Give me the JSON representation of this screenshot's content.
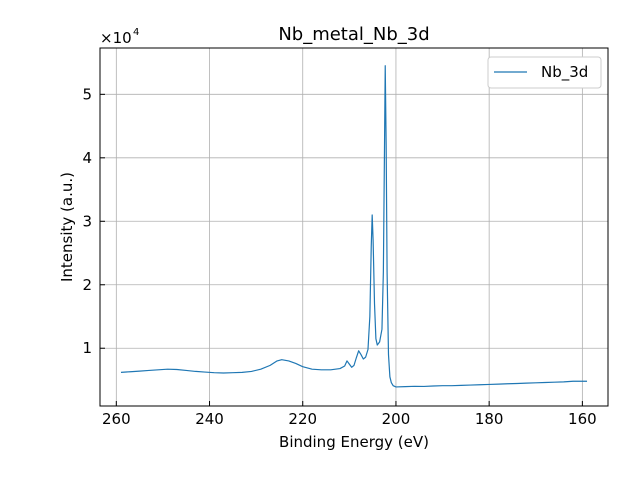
{
  "chart_data": {
    "type": "line",
    "title": "Nb_metal_Nb_3d",
    "xlabel": "Binding Energy (eV)",
    "ylabel": "Intensity (a.u.)",
    "x_inverted": true,
    "xlim": [
      263.5,
      154.5
    ],
    "ylim": [
      900,
      57300
    ],
    "y_multiplier_label": "×10",
    "y_multiplier_exp": "4",
    "x_ticks": [
      260,
      240,
      220,
      200,
      180,
      160
    ],
    "x_tick_labels": [
      "260",
      "240",
      "220",
      "200",
      "180",
      "160"
    ],
    "y_ticks": [
      10000,
      20000,
      30000,
      40000,
      50000
    ],
    "y_tick_labels": [
      "1",
      "2",
      "3",
      "4",
      "5"
    ],
    "grid": true,
    "legend": {
      "position": "top-right",
      "entries": [
        "Nb_3d"
      ]
    },
    "series": [
      {
        "name": "Nb_3d",
        "color": "#1f77b4",
        "points": [
          [
            259,
            6200
          ],
          [
            257,
            6300
          ],
          [
            255,
            6400
          ],
          [
            253,
            6500
          ],
          [
            251,
            6600
          ],
          [
            249,
            6700
          ],
          [
            247,
            6650
          ],
          [
            245,
            6500
          ],
          [
            243,
            6350
          ],
          [
            241,
            6250
          ],
          [
            239,
            6150
          ],
          [
            237,
            6100
          ],
          [
            235,
            6150
          ],
          [
            233,
            6200
          ],
          [
            231,
            6350
          ],
          [
            229,
            6700
          ],
          [
            227,
            7300
          ],
          [
            225.5,
            8000
          ],
          [
            224.5,
            8200
          ],
          [
            223,
            8000
          ],
          [
            221.5,
            7600
          ],
          [
            220,
            7100
          ],
          [
            218,
            6700
          ],
          [
            216,
            6600
          ],
          [
            214,
            6600
          ],
          [
            212,
            6800
          ],
          [
            211,
            7200
          ],
          [
            210.5,
            8000
          ],
          [
            210,
            7500
          ],
          [
            209.5,
            7000
          ],
          [
            209,
            7300
          ],
          [
            208.5,
            8500
          ],
          [
            208,
            9600
          ],
          [
            207.5,
            9000
          ],
          [
            207,
            8300
          ],
          [
            206.5,
            8600
          ],
          [
            206,
            9800
          ],
          [
            205.6,
            15000
          ],
          [
            205.3,
            26000
          ],
          [
            205.1,
            31000
          ],
          [
            204.9,
            27000
          ],
          [
            204.6,
            17000
          ],
          [
            204.3,
            11500
          ],
          [
            204,
            10500
          ],
          [
            203.5,
            11000
          ],
          [
            203,
            13000
          ],
          [
            202.7,
            22000
          ],
          [
            202.5,
            38000
          ],
          [
            202.3,
            54500
          ],
          [
            202.1,
            42000
          ],
          [
            201.9,
            22000
          ],
          [
            201.6,
            9000
          ],
          [
            201.3,
            5500
          ],
          [
            201,
            4600
          ],
          [
            200.6,
            4100
          ],
          [
            200,
            3900
          ],
          [
            198,
            3950
          ],
          [
            196,
            4000
          ],
          [
            194,
            3980
          ],
          [
            192,
            4050
          ],
          [
            190,
            4100
          ],
          [
            188,
            4100
          ],
          [
            186,
            4150
          ],
          [
            184,
            4200
          ],
          [
            182,
            4250
          ],
          [
            180,
            4300
          ],
          [
            178,
            4350
          ],
          [
            176,
            4400
          ],
          [
            174,
            4450
          ],
          [
            172,
            4500
          ],
          [
            170,
            4550
          ],
          [
            168,
            4600
          ],
          [
            166,
            4650
          ],
          [
            164,
            4700
          ],
          [
            162,
            4800
          ],
          [
            160,
            4800
          ],
          [
            159,
            4800
          ]
        ]
      }
    ]
  }
}
